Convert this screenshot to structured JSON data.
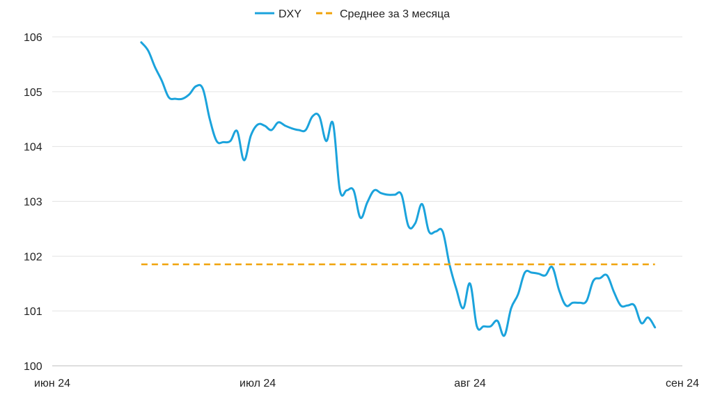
{
  "chart_data": {
    "type": "line",
    "title": "",
    "xlabel": "",
    "ylabel": "",
    "ylim": [
      100,
      106
    ],
    "yticks": [
      100,
      101,
      102,
      103,
      104,
      105,
      106
    ],
    "ytick_labels": [
      "100",
      "101",
      "102",
      "103",
      "104",
      "105",
      "106"
    ],
    "xlim": [
      "2024-06-01",
      "2024-09-01"
    ],
    "xticks": [
      {
        "label": "июн 24",
        "date": "2024-06-01"
      },
      {
        "label": "июл 24",
        "date": "2024-07-01"
      },
      {
        "label": "авг 24",
        "date": "2024-08-01"
      },
      {
        "label": "сен 24",
        "date": "2024-09-01"
      }
    ],
    "grid": "horizontal",
    "legend_position": "top-center",
    "series": [
      {
        "name": "DXY",
        "color": "#1ba3dc",
        "style": "solid",
        "points": [
          [
            "2024-06-14",
            105.9
          ],
          [
            "2024-06-15",
            105.75
          ],
          [
            "2024-06-16",
            105.45
          ],
          [
            "2024-06-17",
            105.2
          ],
          [
            "2024-06-18",
            104.9
          ],
          [
            "2024-06-19",
            104.87
          ],
          [
            "2024-06-20",
            104.87
          ],
          [
            "2024-06-21",
            104.95
          ],
          [
            "2024-06-22",
            105.1
          ],
          [
            "2024-06-23",
            105.05
          ],
          [
            "2024-06-24",
            104.5
          ],
          [
            "2024-06-25",
            104.1
          ],
          [
            "2024-06-26",
            104.08
          ],
          [
            "2024-06-27",
            104.1
          ],
          [
            "2024-06-28",
            104.28
          ],
          [
            "2024-06-29",
            103.75
          ],
          [
            "2024-06-30",
            104.2
          ],
          [
            "2024-07-01",
            104.4
          ],
          [
            "2024-07-02",
            104.38
          ],
          [
            "2024-07-03",
            104.3
          ],
          [
            "2024-07-04",
            104.44
          ],
          [
            "2024-07-05",
            104.38
          ],
          [
            "2024-07-06",
            104.33
          ],
          [
            "2024-07-07",
            104.3
          ],
          [
            "2024-07-08",
            104.3
          ],
          [
            "2024-07-09",
            104.55
          ],
          [
            "2024-07-10",
            104.55
          ],
          [
            "2024-07-11",
            104.1
          ],
          [
            "2024-07-12",
            104.42
          ],
          [
            "2024-07-13",
            103.2
          ],
          [
            "2024-07-14",
            103.2
          ],
          [
            "2024-07-15",
            103.2
          ],
          [
            "2024-07-16",
            102.7
          ],
          [
            "2024-07-17",
            102.98
          ],
          [
            "2024-07-18",
            103.2
          ],
          [
            "2024-07-19",
            103.15
          ],
          [
            "2024-07-20",
            103.12
          ],
          [
            "2024-07-21",
            103.12
          ],
          [
            "2024-07-22",
            103.12
          ],
          [
            "2024-07-23",
            102.55
          ],
          [
            "2024-07-24",
            102.6
          ],
          [
            "2024-07-25",
            102.95
          ],
          [
            "2024-07-26",
            102.45
          ],
          [
            "2024-07-27",
            102.45
          ],
          [
            "2024-07-28",
            102.45
          ],
          [
            "2024-07-29",
            101.85
          ],
          [
            "2024-07-30",
            101.4
          ],
          [
            "2024-07-31",
            101.05
          ],
          [
            "2024-08-01",
            101.5
          ],
          [
            "2024-08-02",
            100.72
          ],
          [
            "2024-08-03",
            100.72
          ],
          [
            "2024-08-04",
            100.72
          ],
          [
            "2024-08-05",
            100.82
          ],
          [
            "2024-08-06",
            100.55
          ],
          [
            "2024-08-07",
            101.05
          ],
          [
            "2024-08-08",
            101.3
          ],
          [
            "2024-08-09",
            101.7
          ],
          [
            "2024-08-10",
            101.7
          ],
          [
            "2024-08-11",
            101.68
          ],
          [
            "2024-08-12",
            101.65
          ],
          [
            "2024-08-13",
            101.8
          ],
          [
            "2024-08-14",
            101.38
          ],
          [
            "2024-08-15",
            101.1
          ],
          [
            "2024-08-16",
            101.15
          ],
          [
            "2024-08-17",
            101.15
          ],
          [
            "2024-08-18",
            101.18
          ],
          [
            "2024-08-19",
            101.55
          ],
          [
            "2024-08-20",
            101.6
          ],
          [
            "2024-08-21",
            101.65
          ],
          [
            "2024-08-22",
            101.35
          ],
          [
            "2024-08-23",
            101.1
          ],
          [
            "2024-08-24",
            101.1
          ],
          [
            "2024-08-25",
            101.1
          ],
          [
            "2024-08-26",
            100.78
          ],
          [
            "2024-08-27",
            100.88
          ],
          [
            "2024-08-28",
            100.7
          ]
        ]
      },
      {
        "name": "Среднее за 3 месяца",
        "color": "#f0a30a",
        "style": "dashed",
        "points": [
          [
            "2024-06-14",
            101.85
          ],
          [
            "2024-08-28",
            101.85
          ]
        ]
      }
    ]
  }
}
